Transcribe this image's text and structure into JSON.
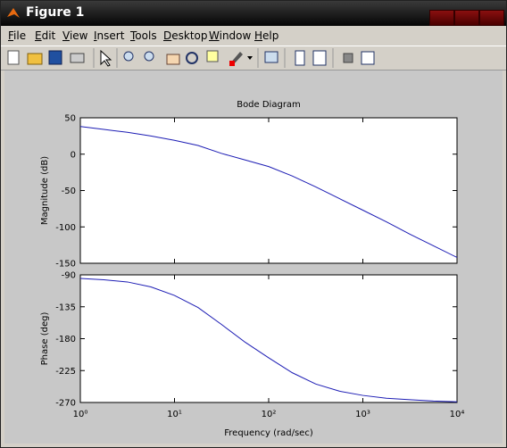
{
  "window": {
    "title": "Figure 1",
    "menu": [
      "File",
      "Edit",
      "View",
      "Insert",
      "Tools",
      "Desktop",
      "Window",
      "Help"
    ]
  },
  "chart_data": [
    {
      "type": "line",
      "title": "Bode Diagram",
      "ylabel": "Magnitude (dB)",
      "xscale": "log",
      "box": true,
      "xtick_labels_visible": false,
      "x": [
        1,
        1.778,
        3.162,
        5.623,
        10,
        17.78,
        31.62,
        56.23,
        100,
        177.8,
        316.2,
        562.3,
        1000,
        1778,
        3162,
        5623,
        10000
      ],
      "series": [
        {
          "color": "#1c1cb4",
          "values": [
            38,
            34,
            30,
            25,
            19,
            12,
            1,
            -8,
            -17,
            -30,
            -45,
            -61,
            -77,
            -93,
            -110,
            -126,
            -142
          ]
        }
      ],
      "xlim": [
        1,
        10000
      ],
      "xticks": [
        1,
        10,
        100,
        1000,
        10000
      ],
      "ylim": [
        -150,
        50
      ],
      "yticks": [
        50,
        0,
        -50,
        -100,
        -150
      ]
    },
    {
      "type": "line",
      "ylabel": "Phase (deg)",
      "xlabel": "Frequency  (rad/sec)",
      "xscale": "log",
      "box": true,
      "xtick_labels_visible": true,
      "x": [
        1,
        1.778,
        3.162,
        5.623,
        10,
        17.78,
        31.62,
        56.23,
        100,
        177.8,
        316.2,
        562.3,
        1000,
        1778,
        3162,
        5623,
        10000
      ],
      "series": [
        {
          "color": "#1c1cb4",
          "values": [
            -95,
            -97,
            -100,
            -107,
            -119,
            -136,
            -160,
            -185,
            -207,
            -228,
            -244,
            -254,
            -260,
            -264,
            -266,
            -268,
            -269
          ]
        }
      ],
      "xlim": [
        1,
        10000
      ],
      "xticks": [
        {
          "value": 1,
          "label": "10⁰"
        },
        {
          "value": 10,
          "label": "10¹"
        },
        {
          "value": 100,
          "label": "10²"
        },
        {
          "value": 1000,
          "label": "10³"
        },
        {
          "value": 10000,
          "label": "10⁴"
        }
      ],
      "ylim": [
        -270,
        -90
      ],
      "yticks": [
        -90,
        -135,
        -180,
        -225,
        -270
      ]
    }
  ]
}
